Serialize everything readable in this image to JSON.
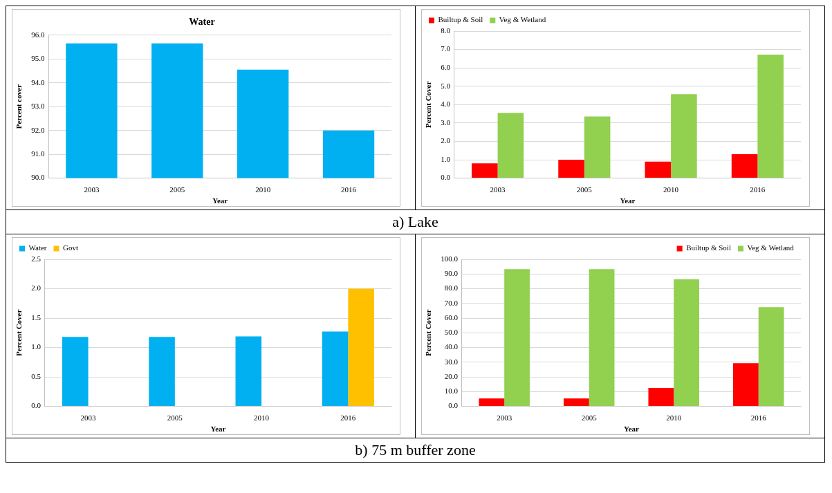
{
  "chart_data": [
    {
      "type": "bar",
      "title": "Water",
      "xlabel": "Year",
      "ylabel": "Percent cover",
      "categories": [
        "2003",
        "2005",
        "2010",
        "2016"
      ],
      "annotations": [
        "a) Lake"
      ],
      "series": [
        {
          "color": "#00b0f0",
          "values": [
            95.65,
            95.65,
            94.55,
            92.0
          ]
        }
      ],
      "ylim": [
        90,
        96
      ],
      "yticks": [
        {
          "value": 90,
          "label": "90.0"
        },
        {
          "value": 91,
          "label": "91.0"
        },
        {
          "value": 92,
          "label": "92.0"
        },
        {
          "value": 93,
          "label": "93.0"
        },
        {
          "value": 94,
          "label": "94.0"
        },
        {
          "value": 95,
          "label": "95.0"
        },
        {
          "value": 96,
          "label": "96.0"
        }
      ],
      "grid": "y"
    },
    {
      "type": "bar",
      "xlabel": "Year",
      "ylabel": "Percent Cover",
      "categories": [
        "2003",
        "2005",
        "2010",
        "2016"
      ],
      "series": [
        {
          "name": "Builtup & Soil",
          "color": "#ff0000",
          "values": [
            0.8,
            1.0,
            0.9,
            1.3
          ]
        },
        {
          "name": "Veg & Wetland",
          "color": "#92d050",
          "values": [
            3.55,
            3.35,
            4.57,
            6.72
          ]
        }
      ],
      "ylim": [
        0,
        8
      ],
      "yticks": [
        {
          "value": 0,
          "label": "0.0"
        },
        {
          "value": 1,
          "label": "1.0"
        },
        {
          "value": 2,
          "label": "2.0"
        },
        {
          "value": 3,
          "label": "3.0"
        },
        {
          "value": 4,
          "label": "4.0"
        },
        {
          "value": 5,
          "label": "5.0"
        },
        {
          "value": 6,
          "label": "6.0"
        },
        {
          "value": 7,
          "label": "7.0"
        },
        {
          "value": 8,
          "label": "8.0"
        }
      ],
      "grid": "y",
      "legend": "top left"
    },
    {
      "type": "bar",
      "xlabel": "Year",
      "ylabel": "Percent Cover",
      "categories": [
        "2003",
        "2005",
        "2010",
        "2016"
      ],
      "annotations": [
        "b) 75 m buffer zone"
      ],
      "series": [
        {
          "name": "Water",
          "color": "#00b0f0",
          "values": [
            1.18,
            1.18,
            1.19,
            1.27
          ]
        },
        {
          "name": "Govt",
          "color": "#ffc000",
          "values": [
            null,
            null,
            null,
            2.0
          ]
        }
      ],
      "ylim": [
        0,
        2.5
      ],
      "yticks": [
        {
          "value": 0,
          "label": "0.0"
        },
        {
          "value": 0.5,
          "label": "0.5"
        },
        {
          "value": 1,
          "label": "1.0"
        },
        {
          "value": 1.5,
          "label": "1.5"
        },
        {
          "value": 2,
          "label": "2.0"
        },
        {
          "value": 2.5,
          "label": "2.5"
        }
      ],
      "grid": "y",
      "legend": "top left"
    },
    {
      "type": "bar",
      "xlabel": "Year",
      "ylabel": "Percent Cover",
      "categories": [
        "2003",
        "2005",
        "2010",
        "2016"
      ],
      "series": [
        {
          "name": "Builtup & Soil",
          "color": "#ff0000",
          "values": [
            5.3,
            5.3,
            12.5,
            29.3
          ]
        },
        {
          "name": "Veg & Wetland",
          "color": "#92d050",
          "values": [
            93.3,
            93.3,
            86.4,
            67.4
          ]
        }
      ],
      "ylim": [
        0,
        100
      ],
      "yticks": [
        {
          "value": 0,
          "label": "0.0"
        },
        {
          "value": 10,
          "label": "10.0"
        },
        {
          "value": 20,
          "label": "20.0"
        },
        {
          "value": 30,
          "label": "30.0"
        },
        {
          "value": 40,
          "label": "40.0"
        },
        {
          "value": 50,
          "label": "50.0"
        },
        {
          "value": 60,
          "label": "60.0"
        },
        {
          "value": 70,
          "label": "70.0"
        },
        {
          "value": 80,
          "label": "80.0"
        },
        {
          "value": 90,
          "label": "90.0"
        },
        {
          "value": 100,
          "label": "100.0"
        }
      ],
      "grid": "y",
      "legend": "top right"
    }
  ]
}
